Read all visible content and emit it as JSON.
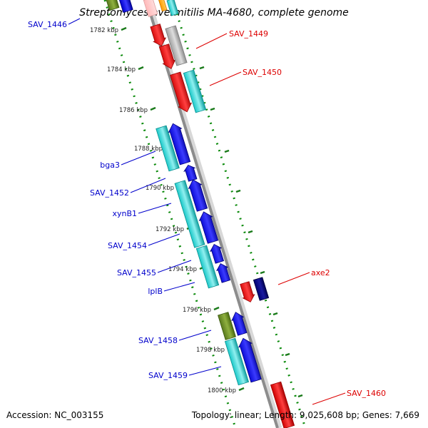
{
  "title": "Streptomyces avermitilis MA-4680, complete genome",
  "accession": "Accession: NC_003155",
  "topology": "Topology: linear; Length: 9,025,608 bp; Genes: 7,669",
  "colors": {
    "axis": "#8c8c8c",
    "track_dots": "#0a8a0a",
    "tick": "#1a7a1a",
    "label_forward": "#0000cc",
    "label_reverse": "#dd0000",
    "cyan": "#19c8c8",
    "blue": "#0000ee",
    "red": "#ee0000",
    "gray": "#b4b4b4",
    "navy": "#000080",
    "olive": "#6b8e23",
    "pink": "#ffc8c8",
    "orange": "#ffa500"
  },
  "ticks": [
    "1782 kbp",
    "1784 kbp",
    "1786 kbp",
    "1788 kbp",
    "1790 kbp",
    "1792 kbp",
    "1794 kbp",
    "1796 kbp",
    "1798 kbp",
    "1800 kbp"
  ],
  "gene_labels": [
    {
      "text": "SAV_1446",
      "side": "left"
    },
    {
      "text": "SAV_1449",
      "side": "right"
    },
    {
      "text": "SAV_1450",
      "side": "right"
    },
    {
      "text": "bga3",
      "side": "left"
    },
    {
      "text": "SAV_1452",
      "side": "left"
    },
    {
      "text": "xynB1",
      "side": "left"
    },
    {
      "text": "SAV_1454",
      "side": "left"
    },
    {
      "text": "SAV_1455",
      "side": "left"
    },
    {
      "text": "lplB",
      "side": "left"
    },
    {
      "text": "axe2",
      "side": "right"
    },
    {
      "text": "SAV_1458",
      "side": "left"
    },
    {
      "text": "SAV_1459",
      "side": "left"
    },
    {
      "text": "SAV_1460",
      "side": "right"
    }
  ]
}
